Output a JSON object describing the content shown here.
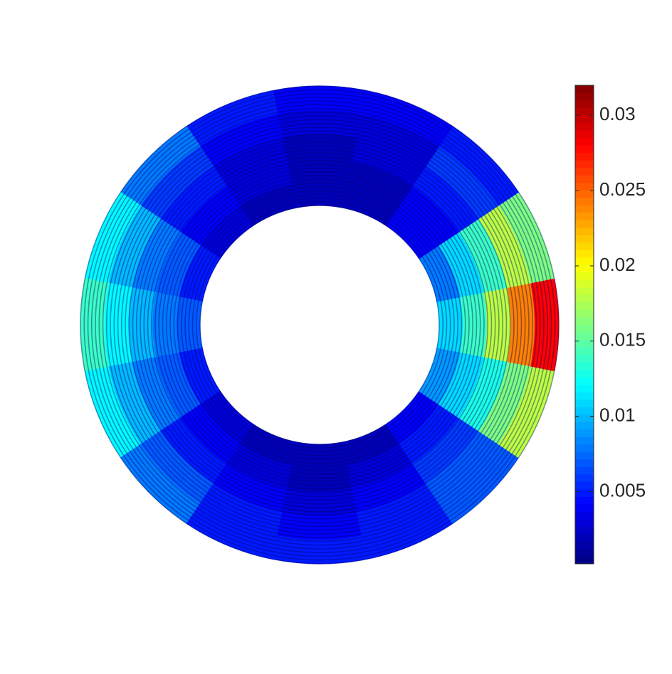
{
  "chart_data": {
    "type": "polar-heatmap",
    "values": [
      [
        0.011,
        0.014,
        0.018,
        0.024,
        0.028
      ],
      [
        0.008,
        0.011,
        0.014,
        0.018,
        0.016
      ],
      [
        0.004,
        0.004,
        0.005,
        0.006,
        0.005
      ],
      [
        0.002,
        0.002,
        0.003,
        0.003,
        0.004
      ],
      [
        0.002,
        0.002,
        0.002,
        0.003,
        0.004
      ],
      [
        0.002,
        0.003,
        0.003,
        0.004,
        0.005
      ],
      [
        0.003,
        0.004,
        0.005,
        0.006,
        0.008
      ],
      [
        0.005,
        0.007,
        0.008,
        0.01,
        0.012
      ],
      [
        0.007,
        0.008,
        0.01,
        0.012,
        0.014
      ],
      [
        0.005,
        0.007,
        0.008,
        0.01,
        0.012
      ],
      [
        0.003,
        0.004,
        0.005,
        0.007,
        0.008
      ],
      [
        0.002,
        0.003,
        0.004,
        0.005,
        0.005
      ],
      [
        0.002,
        0.002,
        0.003,
        0.004,
        0.005
      ],
      [
        0.002,
        0.003,
        0.004,
        0.005,
        0.005
      ],
      [
        0.004,
        0.005,
        0.006,
        0.007,
        0.007
      ],
      [
        0.009,
        0.011,
        0.013,
        0.016,
        0.018
      ]
    ],
    "colormap": "jet",
    "colorbar": {
      "lim": [
        0.0002,
        0.032
      ],
      "ticks": [
        0.005,
        0.01,
        0.015,
        0.02,
        0.025,
        0.03
      ]
    }
  }
}
